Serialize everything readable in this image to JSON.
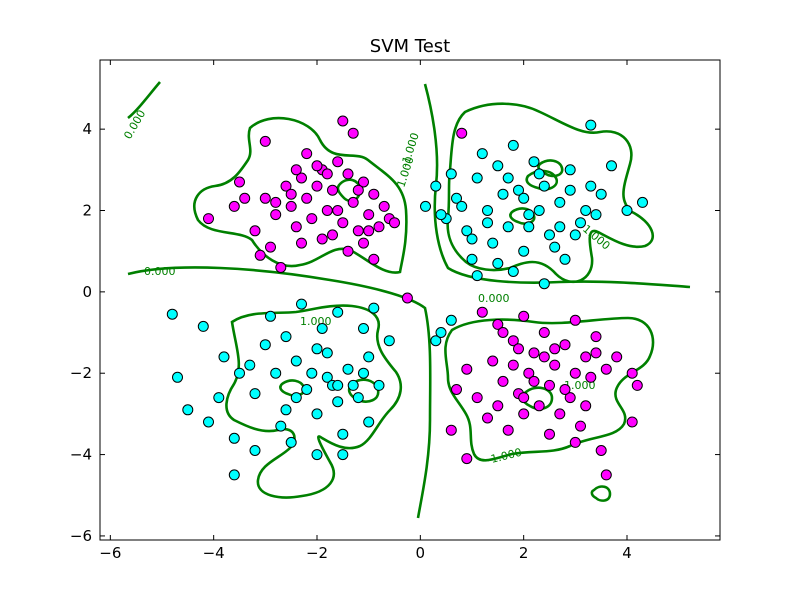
{
  "chart_data": {
    "type": "scatter",
    "title": "SVM Test",
    "xlabel": "",
    "ylabel": "",
    "xlim": [
      -6.2,
      5.8
    ],
    "ylim": [
      -6.1,
      5.7
    ],
    "xticks": [
      -6,
      -4,
      -2,
      0,
      2,
      4
    ],
    "yticks": [
      -6,
      -4,
      -2,
      0,
      2,
      4
    ],
    "x_tick_labels": [
      "−6",
      "−4",
      "−2",
      "0",
      "2",
      "4"
    ],
    "y_tick_labels": [
      "−6",
      "−4",
      "−2",
      "0",
      "2",
      "4"
    ],
    "grid": false,
    "colors": {
      "class_magenta": "#ff00ff",
      "class_cyan": "#00ffff",
      "contour": "#008000"
    },
    "series": [
      {
        "color": "#ff00ff",
        "points": [
          [
            -4.1,
            1.8
          ],
          [
            -3.6,
            2.1
          ],
          [
            -3.5,
            2.7
          ],
          [
            -3.2,
            1.5
          ],
          [
            -3.0,
            2.3
          ],
          [
            -2.8,
            1.9
          ],
          [
            -2.6,
            2.6
          ],
          [
            -2.5,
            2.1
          ],
          [
            -2.4,
            1.6
          ],
          [
            -2.3,
            2.8
          ],
          [
            -2.2,
            2.3
          ],
          [
            -2.1,
            1.8
          ],
          [
            -2.0,
            2.6
          ],
          [
            -1.9,
            3.0
          ],
          [
            -1.8,
            2.0
          ],
          [
            -1.7,
            2.5
          ],
          [
            -1.6,
            3.2
          ],
          [
            -1.5,
            1.7
          ],
          [
            -1.4,
            2.9
          ],
          [
            -1.3,
            2.2
          ],
          [
            -1.2,
            1.5
          ],
          [
            -1.1,
            2.7
          ],
          [
            -1.0,
            1.9
          ],
          [
            -0.9,
            2.4
          ],
          [
            -0.8,
            1.6
          ],
          [
            -0.7,
            2.1
          ],
          [
            -0.6,
            1.8
          ],
          [
            -1.5,
            4.2
          ],
          [
            -1.3,
            3.9
          ],
          [
            -2.2,
            3.4
          ],
          [
            -2.0,
            3.1
          ],
          [
            -2.9,
            1.1
          ],
          [
            -3.1,
            0.9
          ],
          [
            -2.7,
            0.6
          ],
          [
            -1.4,
            1.0
          ],
          [
            -1.1,
            1.2
          ],
          [
            -0.9,
            0.8
          ],
          [
            -3.0,
            3.7
          ],
          [
            -2.3,
            1.2
          ],
          [
            -1.7,
            1.4
          ],
          [
            -2.5,
            2.4
          ],
          [
            -1.2,
            2.5
          ],
          [
            -1.6,
            2.0
          ],
          [
            -2.8,
            2.2
          ],
          [
            -1.0,
            1.5
          ],
          [
            -0.5,
            1.7
          ],
          [
            -3.4,
            2.3
          ],
          [
            -1.8,
            2.9
          ],
          [
            -2.4,
            3.0
          ],
          [
            -1.9,
            1.3
          ],
          [
            0.8,
            3.9
          ],
          [
            -0.25,
            -0.15
          ],
          [
            1.2,
            -0.5
          ],
          [
            1.5,
            -0.8
          ],
          [
            1.8,
            -1.2
          ],
          [
            2.0,
            -0.6
          ],
          [
            2.2,
            -1.5
          ],
          [
            2.4,
            -1.0
          ],
          [
            2.6,
            -1.8
          ],
          [
            2.8,
            -1.3
          ],
          [
            3.0,
            -0.7
          ],
          [
            3.2,
            -1.6
          ],
          [
            3.4,
            -1.1
          ],
          [
            3.6,
            -1.9
          ],
          [
            1.4,
            -1.7
          ],
          [
            1.6,
            -2.2
          ],
          [
            1.9,
            -2.5
          ],
          [
            2.1,
            -2.0
          ],
          [
            2.3,
            -2.8
          ],
          [
            2.5,
            -2.3
          ],
          [
            2.7,
            -3.0
          ],
          [
            2.9,
            -2.6
          ],
          [
            3.1,
            -3.3
          ],
          [
            3.3,
            -2.1
          ],
          [
            0.9,
            -1.9
          ],
          [
            1.1,
            -2.6
          ],
          [
            1.3,
            -3.1
          ],
          [
            1.7,
            -3.4
          ],
          [
            2.0,
            -3.0
          ],
          [
            2.5,
            -3.5
          ],
          [
            3.0,
            -3.7
          ],
          [
            3.5,
            -3.9
          ],
          [
            0.7,
            -2.4
          ],
          [
            0.6,
            -3.4
          ],
          [
            0.9,
            -4.1
          ],
          [
            4.1,
            -2.0
          ],
          [
            4.2,
            -2.3
          ],
          [
            3.8,
            -1.6
          ],
          [
            3.6,
            -4.5
          ],
          [
            4.1,
            -3.2
          ],
          [
            1.8,
            -1.8
          ],
          [
            2.2,
            -2.2
          ],
          [
            2.6,
            -1.4
          ],
          [
            3.0,
            -2.0
          ],
          [
            1.5,
            -2.8
          ],
          [
            2.8,
            -2.4
          ],
          [
            3.2,
            -2.8
          ],
          [
            2.4,
            -1.6
          ],
          [
            1.9,
            -1.4
          ],
          [
            3.4,
            -1.5
          ],
          [
            2.0,
            -2.6
          ],
          [
            1.6,
            -1.0
          ]
        ]
      },
      {
        "color": "#00ffff",
        "points": [
          [
            0.1,
            2.1
          ],
          [
            0.3,
            2.6
          ],
          [
            0.5,
            1.8
          ],
          [
            0.7,
            2.3
          ],
          [
            0.9,
            1.5
          ],
          [
            1.1,
            2.8
          ],
          [
            1.3,
            2.0
          ],
          [
            1.5,
            3.1
          ],
          [
            1.7,
            1.6
          ],
          [
            1.9,
            2.5
          ],
          [
            2.1,
            1.9
          ],
          [
            2.3,
            2.9
          ],
          [
            2.5,
            1.4
          ],
          [
            2.7,
            2.2
          ],
          [
            2.9,
            3.0
          ],
          [
            3.1,
            1.7
          ],
          [
            3.3,
            2.6
          ],
          [
            3.5,
            2.4
          ],
          [
            3.7,
            3.1
          ],
          [
            1.2,
            3.4
          ],
          [
            1.8,
            3.6
          ],
          [
            2.2,
            3.2
          ],
          [
            0.8,
            2.1
          ],
          [
            1.0,
            1.3
          ],
          [
            1.4,
            1.2
          ],
          [
            2.0,
            1.0
          ],
          [
            2.6,
            1.1
          ],
          [
            3.0,
            1.4
          ],
          [
            3.4,
            1.9
          ],
          [
            4.0,
            2.0
          ],
          [
            4.3,
            2.2
          ],
          [
            1.0,
            0.8
          ],
          [
            1.8,
            0.5
          ],
          [
            2.4,
            0.2
          ],
          [
            1.1,
            0.4
          ],
          [
            2.0,
            2.3
          ],
          [
            2.7,
            1.6
          ],
          [
            1.6,
            2.4
          ],
          [
            2.4,
            2.6
          ],
          [
            3.3,
            4.1
          ],
          [
            0.6,
            2.9
          ],
          [
            1.3,
            1.7
          ],
          [
            2.1,
            1.6
          ],
          [
            2.9,
            2.5
          ],
          [
            0.4,
            1.9
          ],
          [
            1.5,
            0.7
          ],
          [
            2.8,
            0.8
          ],
          [
            3.2,
            2.0
          ],
          [
            2.3,
            2.0
          ],
          [
            1.7,
            2.8
          ],
          [
            -4.8,
            -0.55
          ],
          [
            -4.2,
            -0.85
          ],
          [
            -3.8,
            -1.6
          ],
          [
            -3.5,
            -2.0
          ],
          [
            -3.2,
            -2.5
          ],
          [
            -3.0,
            -1.3
          ],
          [
            -2.8,
            -2.0
          ],
          [
            -2.6,
            -2.9
          ],
          [
            -2.4,
            -1.7
          ],
          [
            -2.2,
            -2.4
          ],
          [
            -2.0,
            -1.4
          ],
          [
            -1.8,
            -2.1
          ],
          [
            -1.6,
            -2.7
          ],
          [
            -1.4,
            -1.9
          ],
          [
            -1.2,
            -2.6
          ],
          [
            -1.0,
            -1.6
          ],
          [
            -0.8,
            -2.3
          ],
          [
            -0.6,
            -1.2
          ],
          [
            -1.6,
            -0.5
          ],
          [
            -1.9,
            -0.9
          ],
          [
            -2.3,
            -0.3
          ],
          [
            -2.9,
            -0.6
          ],
          [
            -3.9,
            -2.6
          ],
          [
            -4.1,
            -3.2
          ],
          [
            -3.6,
            -3.6
          ],
          [
            -3.2,
            -3.9
          ],
          [
            -2.7,
            -3.3
          ],
          [
            -2.0,
            -3.0
          ],
          [
            -1.5,
            -3.5
          ],
          [
            -1.0,
            -3.2
          ],
          [
            -2.5,
            -3.7
          ],
          [
            -2.0,
            -4.0
          ],
          [
            -1.5,
            -4.0
          ],
          [
            -4.5,
            -2.9
          ],
          [
            -4.7,
            -2.1
          ],
          [
            -3.6,
            -4.5
          ],
          [
            -1.1,
            -0.9
          ],
          [
            -0.9,
            -0.4
          ],
          [
            -1.7,
            -2.3
          ],
          [
            -2.1,
            -2.0
          ],
          [
            -1.3,
            -2.3
          ],
          [
            -2.6,
            -1.1
          ],
          [
            -3.3,
            -1.8
          ],
          [
            -1.8,
            -1.5
          ],
          [
            -2.4,
            -2.6
          ],
          [
            -1.1,
            -2.0
          ],
          [
            0.3,
            -1.2
          ],
          [
            0.6,
            -0.7
          ],
          [
            0.4,
            -1.0
          ],
          [
            -1.6,
            -2.3
          ]
        ]
      }
    ],
    "contour_labels": [
      "0.000",
      "1.000",
      "-1.000",
      "0.000",
      "1.000",
      "0.000",
      "-1.000",
      "-1.000",
      "1.000",
      "0.000"
    ]
  }
}
